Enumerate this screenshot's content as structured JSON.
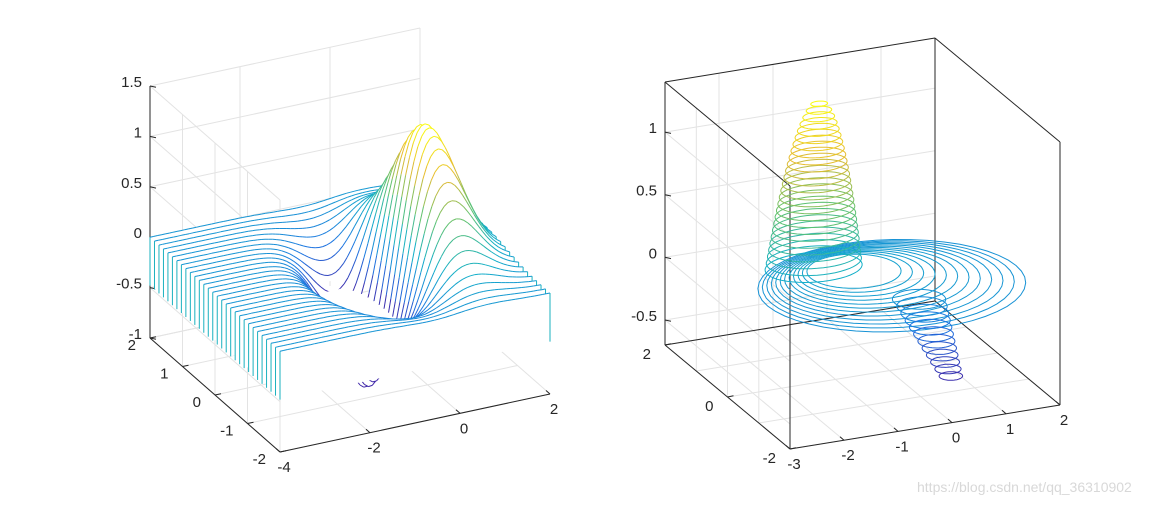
{
  "chart_data": [
    {
      "type": "line",
      "subtype": "waterfall-3d",
      "function": "z = x * exp(-(x^2 + y^2))",
      "title": "",
      "xlabel": "",
      "ylabel": "",
      "zlabel": "",
      "xlim": [
        -4,
        2
      ],
      "ylim": [
        -2,
        2
      ],
      "zlim": [
        -1,
        1.5
      ],
      "x_ticks": [
        "-4",
        "-2",
        "0",
        "2"
      ],
      "y_ticks": [
        "-2",
        "-1",
        "0",
        "1",
        "2"
      ],
      "z_ticks": [
        "-1",
        "-0.5",
        "0",
        "0.5",
        "1",
        "1.5"
      ],
      "z_peak": 1.22,
      "colormap": "parula",
      "grid": true
    },
    {
      "type": "line",
      "subtype": "contour3-stacked",
      "title": "",
      "xlabel": "",
      "ylabel": "",
      "zlabel": "",
      "xlim": [
        -3,
        2
      ],
      "ylim": [
        -2,
        2
      ],
      "zlim": [
        -0.7,
        1.4
      ],
      "x_ticks": [
        "-3",
        "-2",
        "-1",
        "0",
        "1",
        "2"
      ],
      "y_ticks": [
        "-2",
        "0",
        "2"
      ],
      "z_ticks": [
        "-0.5",
        "0",
        "0.5",
        "1"
      ],
      "z_peak": 1.2,
      "z_min": -0.55,
      "colormap": "parula",
      "grid": true
    }
  ],
  "watermark": "https://blog.csdn.net/qq_36310902"
}
